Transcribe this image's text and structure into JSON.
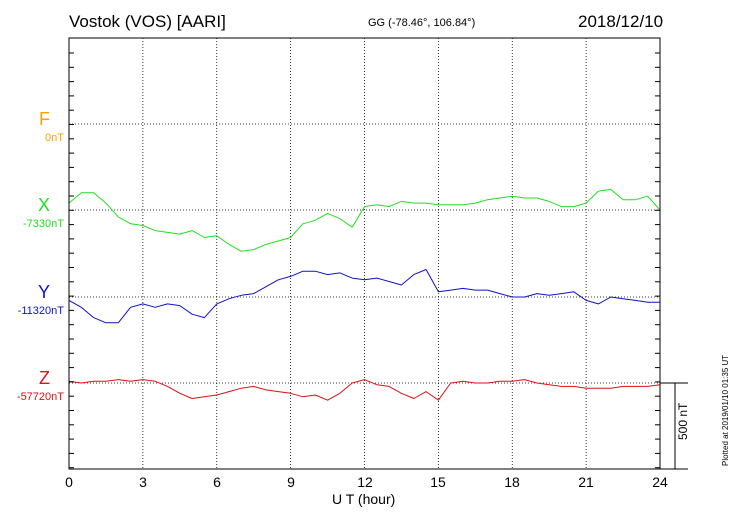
{
  "header": {
    "station": "Vostok (VOS)  [AARI]",
    "coords": "GG (-78.46°, 106.84°)",
    "date": "2018/12/10"
  },
  "footer": {
    "plotted": "Plotted at 2019/01/10 01:35 UT"
  },
  "colors": {
    "F": "#f5a300",
    "X": "#22dd22",
    "Y": "#1010cc",
    "Z": "#dd1111"
  },
  "chart_data": {
    "type": "line",
    "xlabel": "U T (hour)",
    "xlim": [
      0,
      24
    ],
    "x_ticks": [
      "0",
      "3",
      "6",
      "9",
      "12",
      "15",
      "18",
      "21",
      "24"
    ],
    "grid": true,
    "scale_bar": "500 nT",
    "series": [
      {
        "name": "F",
        "baseline": "0nT",
        "x": [],
        "values": []
      },
      {
        "name": "X",
        "baseline": "-7330nT",
        "x": [
          0,
          0.5,
          1,
          1.5,
          2,
          2.5,
          3,
          3.5,
          4,
          4.5,
          5,
          5.5,
          6,
          6.5,
          7,
          7.5,
          8,
          8.5,
          9,
          9.5,
          10,
          10.5,
          11,
          11.5,
          12,
          12.5,
          13,
          13.5,
          14,
          14.5,
          15,
          15.5,
          16,
          16.5,
          17,
          17.5,
          18,
          18.5,
          19,
          19.5,
          20,
          20.5,
          21,
          21.5,
          22,
          22.5,
          23,
          23.5,
          24
        ],
        "values": [
          40,
          100,
          100,
          40,
          -40,
          -80,
          -90,
          -120,
          -130,
          -140,
          -120,
          -160,
          -150,
          -200,
          -240,
          -230,
          -200,
          -180,
          -160,
          -80,
          -60,
          -20,
          -50,
          -100,
          20,
          30,
          20,
          50,
          40,
          40,
          30,
          30,
          30,
          40,
          60,
          70,
          80,
          70,
          70,
          50,
          20,
          20,
          40,
          110,
          120,
          60,
          60,
          80,
          0
        ]
      },
      {
        "name": "Y",
        "baseline": "-11320nT",
        "x": [
          0,
          0.5,
          1,
          1.5,
          2,
          2.5,
          3,
          3.5,
          4,
          4.5,
          5,
          5.5,
          6,
          6.5,
          7,
          7.5,
          8,
          8.5,
          9,
          9.5,
          10,
          10.5,
          11,
          11.5,
          12,
          12.5,
          13,
          13.5,
          14,
          14.5,
          15,
          15.5,
          16,
          16.5,
          17,
          17.5,
          18,
          18.5,
          19,
          19.5,
          20,
          20.5,
          21,
          21.5,
          22,
          22.5,
          23,
          23.5,
          24
        ],
        "values": [
          -20,
          -60,
          -120,
          -150,
          -150,
          -60,
          -40,
          -60,
          -40,
          -50,
          -100,
          -120,
          -40,
          -10,
          10,
          20,
          60,
          100,
          120,
          150,
          150,
          130,
          140,
          110,
          100,
          110,
          90,
          70,
          130,
          160,
          30,
          40,
          50,
          40,
          40,
          20,
          0,
          0,
          20,
          10,
          20,
          30,
          -20,
          -40,
          0,
          -10,
          -20,
          -30,
          -30
        ]
      },
      {
        "name": "Z",
        "baseline": "-57720nT",
        "x": [
          0,
          0.5,
          1,
          1.5,
          2,
          2.5,
          3,
          3.5,
          4,
          4.5,
          5,
          5.5,
          6,
          6.5,
          7,
          7.5,
          8,
          8.5,
          9,
          9.5,
          10,
          10.5,
          11,
          11.5,
          12,
          12.5,
          13,
          13.5,
          14,
          14.5,
          15,
          15.5,
          16,
          16.5,
          17,
          17.5,
          18,
          18.5,
          19,
          19.5,
          20,
          20.5,
          21,
          21.5,
          22,
          22.5,
          23,
          23.5,
          24
        ],
        "values": [
          10,
          0,
          10,
          10,
          20,
          10,
          20,
          10,
          -20,
          -60,
          -90,
          -80,
          -70,
          -50,
          -30,
          -20,
          -40,
          -50,
          -60,
          -80,
          -70,
          -100,
          -60,
          0,
          20,
          -10,
          -20,
          -60,
          -90,
          -50,
          -100,
          0,
          10,
          0,
          0,
          10,
          10,
          20,
          0,
          -10,
          -20,
          -20,
          -30,
          -30,
          -30,
          -20,
          -20,
          -20,
          -10
        ]
      }
    ]
  }
}
